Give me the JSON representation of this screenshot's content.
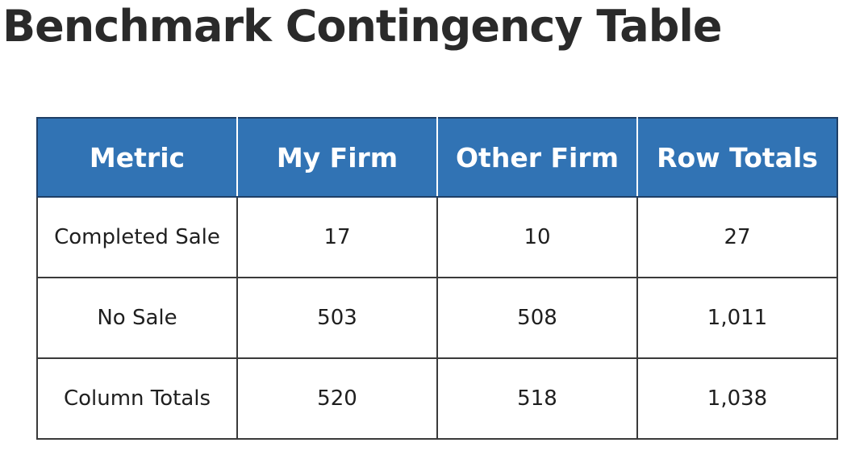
{
  "title": "Benchmark Contingency Table",
  "colors": {
    "header_bg": "#3173b4",
    "header_text": "#ffffff",
    "border": "#3a3a3a",
    "title_text": "#2a2a2a"
  },
  "table": {
    "headers": [
      "Metric",
      "My Firm",
      "Other Firm",
      "Row Totals"
    ],
    "rows": [
      [
        "Completed Sale",
        "17",
        "10",
        "27"
      ],
      [
        "No Sale",
        "503",
        "508",
        "1,011"
      ],
      [
        "Column Totals",
        "520",
        "518",
        "1,038"
      ]
    ]
  }
}
